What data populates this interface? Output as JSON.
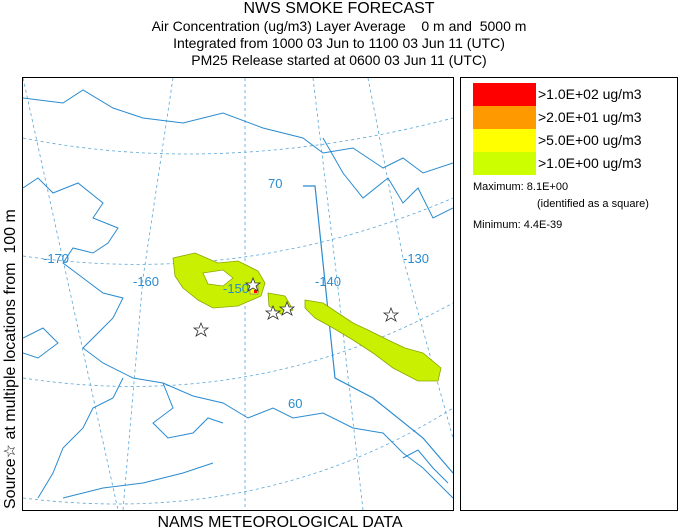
{
  "header": {
    "title": "NWS SMOKE FORECAST",
    "line1": "Air Concentration (ug/m3) Layer Average    0 m and  5000 m",
    "line2": "Integrated from 1000 03 Jun to 1100 03 Jun 11 (UTC)",
    "line3": "PM25 Release started at 0600 03 Jun 11 (UTC)"
  },
  "side_label": "Source☆ at multiple locations from  100 m",
  "footer": "NAMS METEOROLOGICAL DATA",
  "map": {
    "lon_labels": [
      "-170",
      "-160",
      "-150",
      "-140",
      "-130"
    ],
    "lat_labels": [
      "70",
      "60"
    ],
    "colors": {
      "coast": "#2a8bd0",
      "grid": "#5aa6d8",
      "plume": "#c8f000",
      "plume_edge": "#8aa600"
    }
  },
  "legend": {
    "entries": [
      {
        "label": ">1.0E+02 ug/m3",
        "color": "#ff0000"
      },
      {
        "label": ">2.0E+01 ug/m3",
        "color": "#ff9900"
      },
      {
        "label": ">5.0E+00 ug/m3",
        "color": "#ffff00"
      },
      {
        "label": ">1.0E+00 ug/m3",
        "color": "#ccff00"
      }
    ],
    "maximum": "Maximum: 8.1E+00",
    "identified": "(identified as a square)",
    "minimum": "Minimum: 4.4E-39"
  }
}
